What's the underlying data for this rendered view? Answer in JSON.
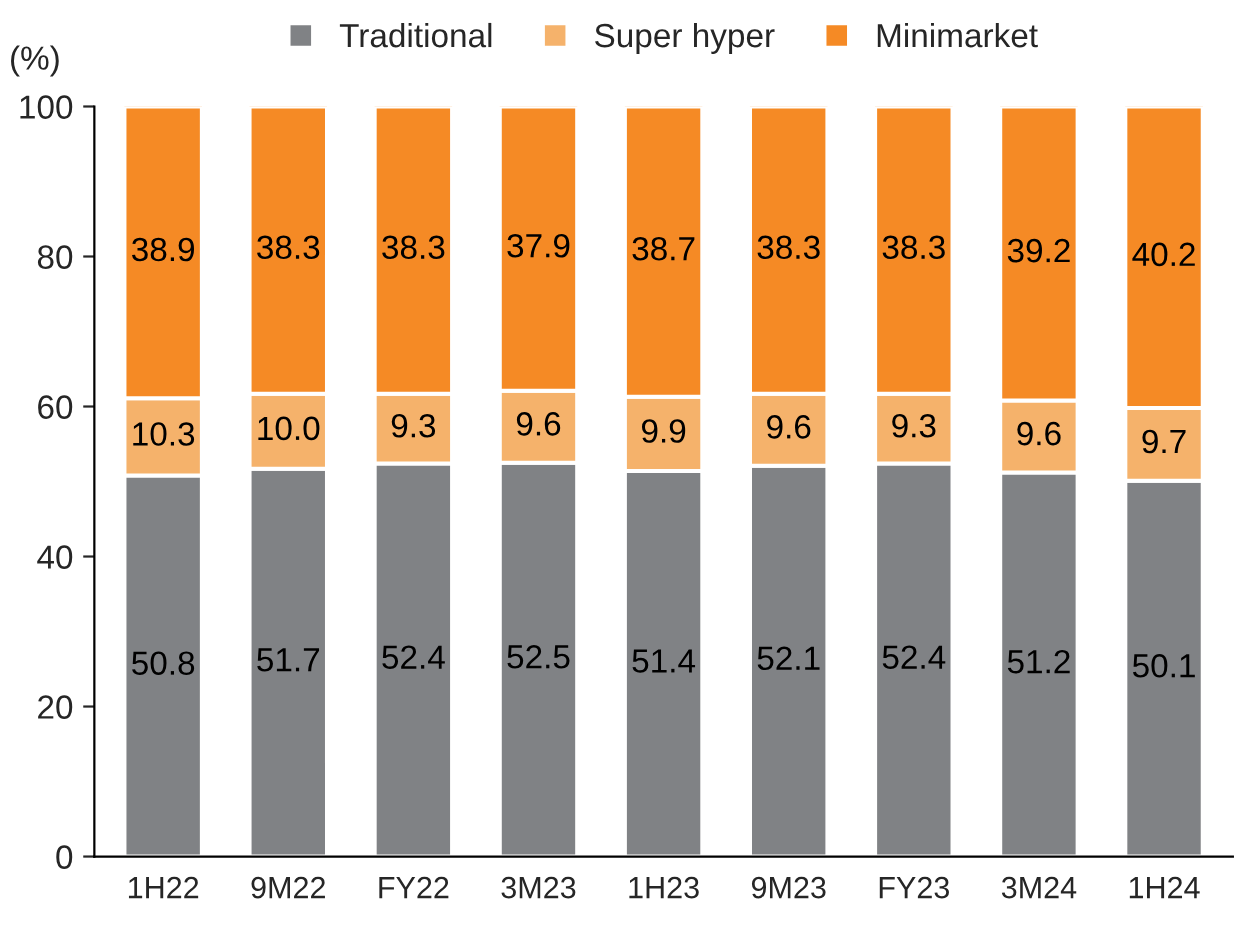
{
  "chart_data": {
    "type": "bar",
    "stacked": true,
    "ylabel": "(%)",
    "categories": [
      "1H22",
      "9M22",
      "FY22",
      "3M23",
      "1H23",
      "9M23",
      "FY23",
      "3M24",
      "1H24"
    ],
    "series": [
      {
        "name": "Traditional",
        "color": "#808285",
        "values": [
          50.8,
          51.7,
          52.4,
          52.5,
          51.4,
          52.1,
          52.4,
          51.2,
          50.1
        ]
      },
      {
        "name": "Super hyper",
        "color": "#f5b26b",
        "values": [
          10.3,
          10.0,
          9.3,
          9.6,
          9.9,
          9.6,
          9.3,
          9.6,
          9.7
        ]
      },
      {
        "name": "Minimarket",
        "color": "#f58a25",
        "values": [
          38.9,
          38.3,
          38.3,
          37.9,
          38.7,
          38.3,
          38.3,
          39.2,
          40.2
        ]
      }
    ],
    "value_labels": [
      [
        "50.8",
        "51.7",
        "52.4",
        "52.5",
        "51.4",
        "52.1",
        "52.4",
        "51.2",
        "50.1"
      ],
      [
        "10.3",
        "10.0",
        "9.3",
        "9.6",
        "9.9",
        "9.6",
        "9.3",
        "9.6",
        "9.7"
      ],
      [
        "38.9",
        "38.3",
        "38.3",
        "37.9",
        "38.7",
        "38.3",
        "38.3",
        "39.2",
        "40.2"
      ]
    ],
    "ylim": [
      0,
      100
    ],
    "yticks": [
      0,
      20,
      40,
      60,
      80,
      100
    ],
    "grid": false,
    "legend": "top"
  }
}
